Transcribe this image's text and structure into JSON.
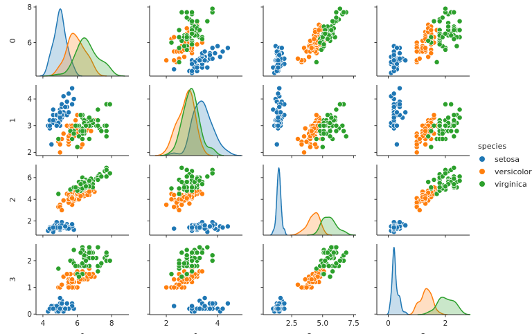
{
  "chart_data": {
    "type": "scatter-matrix",
    "diagonal": "kde",
    "hue_title": "species",
    "axes": [
      {
        "label": "0",
        "xlim": [
          3.6,
          9.0
        ],
        "ylim": [
          4.12,
          8.08
        ],
        "xticks": [
          4,
          6,
          8
        ],
        "xtick_labels": [
          "4",
          "6",
          "8"
        ],
        "yticks": [
          6,
          8
        ],
        "ytick_labels": [
          "6",
          "8"
        ]
      },
      {
        "label": "1",
        "xlim": [
          1.35,
          4.97
        ],
        "ylim": [
          1.88,
          4.52
        ],
        "xticks": [
          2,
          4
        ],
        "xtick_labels": [
          "2",
          "4"
        ],
        "yticks": [
          2,
          3,
          4
        ],
        "ytick_labels": [
          "2",
          "3",
          "4"
        ]
      },
      {
        "label": "2",
        "xlim": [
          0.2,
          7.7
        ],
        "ylim": [
          0.7,
          7.2
        ],
        "xticks": [
          2.5,
          5.0,
          7.5
        ],
        "xtick_labels": [
          "2.5",
          "5.0",
          "7.5"
        ],
        "yticks": [
          2,
          4,
          6
        ],
        "ytick_labels": [
          "2",
          "4",
          "6"
        ]
      },
      {
        "label": "3",
        "xlim": [
          -0.4,
          2.85
        ],
        "ylim": [
          -0.02,
          2.62
        ],
        "xticks": [
          0,
          2
        ],
        "xtick_labels": [
          "0",
          "2"
        ],
        "yticks": [
          0,
          1,
          2
        ],
        "ytick_labels": [
          "0",
          "1",
          "2"
        ]
      }
    ],
    "species": [
      {
        "name": "setosa",
        "color": "#1f77b4",
        "rows": [
          [
            5.1,
            3.5,
            1.4,
            0.2
          ],
          [
            4.9,
            3.0,
            1.4,
            0.2
          ],
          [
            4.7,
            3.2,
            1.3,
            0.2
          ],
          [
            4.6,
            3.1,
            1.5,
            0.2
          ],
          [
            5.0,
            3.6,
            1.4,
            0.2
          ],
          [
            5.4,
            3.9,
            1.7,
            0.4
          ],
          [
            4.6,
            3.4,
            1.4,
            0.3
          ],
          [
            5.0,
            3.4,
            1.5,
            0.2
          ],
          [
            4.4,
            2.9,
            1.4,
            0.2
          ],
          [
            4.9,
            3.1,
            1.5,
            0.1
          ],
          [
            5.4,
            3.7,
            1.5,
            0.2
          ],
          [
            4.8,
            3.4,
            1.6,
            0.2
          ],
          [
            4.8,
            3.0,
            1.4,
            0.1
          ],
          [
            4.3,
            3.0,
            1.1,
            0.1
          ],
          [
            5.8,
            4.0,
            1.2,
            0.2
          ],
          [
            5.7,
            4.4,
            1.5,
            0.4
          ],
          [
            5.4,
            3.9,
            1.3,
            0.4
          ],
          [
            5.1,
            3.5,
            1.4,
            0.3
          ],
          [
            5.7,
            3.8,
            1.7,
            0.3
          ],
          [
            5.1,
            3.8,
            1.5,
            0.3
          ],
          [
            5.4,
            3.4,
            1.7,
            0.2
          ],
          [
            5.1,
            3.7,
            1.5,
            0.4
          ],
          [
            4.6,
            3.6,
            1.0,
            0.2
          ],
          [
            5.1,
            3.3,
            1.7,
            0.5
          ],
          [
            4.8,
            3.4,
            1.9,
            0.2
          ],
          [
            5.0,
            3.0,
            1.6,
            0.2
          ],
          [
            5.0,
            3.4,
            1.6,
            0.4
          ],
          [
            5.2,
            3.5,
            1.5,
            0.2
          ],
          [
            5.2,
            3.4,
            1.4,
            0.2
          ],
          [
            4.7,
            3.2,
            1.6,
            0.2
          ],
          [
            4.8,
            3.1,
            1.6,
            0.2
          ],
          [
            5.4,
            3.4,
            1.5,
            0.4
          ],
          [
            5.2,
            4.1,
            1.5,
            0.1
          ],
          [
            5.5,
            4.2,
            1.4,
            0.2
          ],
          [
            4.9,
            3.1,
            1.5,
            0.1
          ],
          [
            5.0,
            3.2,
            1.2,
            0.2
          ],
          [
            5.5,
            3.5,
            1.3,
            0.2
          ],
          [
            4.9,
            3.1,
            1.5,
            0.1
          ],
          [
            4.4,
            3.0,
            1.3,
            0.2
          ],
          [
            5.1,
            3.4,
            1.5,
            0.2
          ],
          [
            5.0,
            3.5,
            1.3,
            0.3
          ],
          [
            4.5,
            2.3,
            1.3,
            0.3
          ],
          [
            4.4,
            3.2,
            1.3,
            0.2
          ],
          [
            5.0,
            3.5,
            1.6,
            0.6
          ],
          [
            5.1,
            3.8,
            1.9,
            0.4
          ],
          [
            4.8,
            3.0,
            1.4,
            0.3
          ],
          [
            5.1,
            3.8,
            1.6,
            0.2
          ],
          [
            4.6,
            3.2,
            1.4,
            0.2
          ],
          [
            5.3,
            3.7,
            1.5,
            0.2
          ],
          [
            5.0,
            3.3,
            1.4,
            0.2
          ]
        ]
      },
      {
        "name": "versicolor",
        "color": "#ff7f0e",
        "rows": [
          [
            7.0,
            3.2,
            4.7,
            1.4
          ],
          [
            6.4,
            3.2,
            4.5,
            1.5
          ],
          [
            6.9,
            3.1,
            4.9,
            1.5
          ],
          [
            5.5,
            2.3,
            4.0,
            1.3
          ],
          [
            6.5,
            2.8,
            4.6,
            1.5
          ],
          [
            5.7,
            2.8,
            4.5,
            1.3
          ],
          [
            6.3,
            3.3,
            4.7,
            1.6
          ],
          [
            4.9,
            2.4,
            3.3,
            1.0
          ],
          [
            6.6,
            2.9,
            4.6,
            1.3
          ],
          [
            5.2,
            2.7,
            3.9,
            1.4
          ],
          [
            5.0,
            2.0,
            3.5,
            1.0
          ],
          [
            5.9,
            3.0,
            4.2,
            1.5
          ],
          [
            6.0,
            2.2,
            4.0,
            1.0
          ],
          [
            6.1,
            2.9,
            4.7,
            1.4
          ],
          [
            5.6,
            2.9,
            3.6,
            1.3
          ],
          [
            6.7,
            3.1,
            4.4,
            1.4
          ],
          [
            5.6,
            3.0,
            4.5,
            1.5
          ],
          [
            5.8,
            2.7,
            4.1,
            1.0
          ],
          [
            6.2,
            2.2,
            4.5,
            1.5
          ],
          [
            5.6,
            2.5,
            3.9,
            1.1
          ],
          [
            5.9,
            3.2,
            4.8,
            1.8
          ],
          [
            6.1,
            2.8,
            4.0,
            1.3
          ],
          [
            6.3,
            2.5,
            4.9,
            1.5
          ],
          [
            6.1,
            2.8,
            4.7,
            1.2
          ],
          [
            6.4,
            2.9,
            4.3,
            1.3
          ],
          [
            6.6,
            3.0,
            4.4,
            1.4
          ],
          [
            6.8,
            2.8,
            4.8,
            1.4
          ],
          [
            6.7,
            3.0,
            5.0,
            1.7
          ],
          [
            6.0,
            2.9,
            4.5,
            1.5
          ],
          [
            5.7,
            2.6,
            3.5,
            1.0
          ],
          [
            5.5,
            2.4,
            3.8,
            1.1
          ],
          [
            5.5,
            2.4,
            3.7,
            1.0
          ],
          [
            5.8,
            2.7,
            3.9,
            1.2
          ],
          [
            6.0,
            2.7,
            5.1,
            1.6
          ],
          [
            5.4,
            3.0,
            4.5,
            1.5
          ],
          [
            6.0,
            3.4,
            4.5,
            1.6
          ],
          [
            6.7,
            3.1,
            4.7,
            1.5
          ],
          [
            6.3,
            2.3,
            4.4,
            1.3
          ],
          [
            5.6,
            3.0,
            4.1,
            1.3
          ],
          [
            5.5,
            2.5,
            4.0,
            1.3
          ],
          [
            5.5,
            2.6,
            4.4,
            1.2
          ],
          [
            6.1,
            3.0,
            4.6,
            1.4
          ],
          [
            5.8,
            2.6,
            4.0,
            1.2
          ],
          [
            5.0,
            2.3,
            3.3,
            1.0
          ],
          [
            5.6,
            2.7,
            4.2,
            1.3
          ],
          [
            5.7,
            3.0,
            4.2,
            1.2
          ],
          [
            5.7,
            2.9,
            4.2,
            1.3
          ],
          [
            6.2,
            2.9,
            4.3,
            1.3
          ],
          [
            5.1,
            2.5,
            3.0,
            1.1
          ],
          [
            5.7,
            2.8,
            4.1,
            1.3
          ]
        ]
      },
      {
        "name": "virginica",
        "color": "#2ca02c",
        "rows": [
          [
            6.3,
            3.3,
            6.0,
            2.5
          ],
          [
            5.8,
            2.7,
            5.1,
            1.9
          ],
          [
            7.1,
            3.0,
            5.9,
            2.1
          ],
          [
            6.3,
            2.9,
            5.6,
            1.8
          ],
          [
            6.5,
            3.0,
            5.8,
            2.2
          ],
          [
            7.6,
            3.0,
            6.6,
            2.1
          ],
          [
            4.9,
            2.5,
            4.5,
            1.7
          ],
          [
            7.3,
            2.9,
            6.3,
            1.8
          ],
          [
            6.7,
            2.5,
            5.8,
            1.8
          ],
          [
            7.2,
            3.6,
            6.1,
            2.5
          ],
          [
            6.5,
            3.2,
            5.1,
            2.0
          ],
          [
            6.4,
            2.7,
            5.3,
            1.9
          ],
          [
            6.8,
            3.0,
            5.5,
            2.1
          ],
          [
            5.7,
            2.5,
            5.0,
            2.0
          ],
          [
            5.8,
            2.8,
            5.1,
            2.4
          ],
          [
            6.4,
            3.2,
            5.3,
            2.3
          ],
          [
            6.5,
            3.0,
            5.5,
            1.8
          ],
          [
            7.7,
            3.8,
            6.7,
            2.2
          ],
          [
            7.7,
            2.6,
            6.9,
            2.3
          ],
          [
            6.0,
            2.2,
            5.0,
            1.5
          ],
          [
            6.9,
            3.2,
            5.7,
            2.3
          ],
          [
            5.6,
            2.8,
            4.9,
            2.0
          ],
          [
            7.7,
            2.8,
            6.7,
            2.0
          ],
          [
            6.3,
            2.7,
            4.9,
            1.8
          ],
          [
            6.7,
            3.3,
            5.7,
            2.1
          ],
          [
            7.2,
            3.2,
            6.0,
            1.8
          ],
          [
            6.2,
            2.8,
            4.8,
            1.8
          ],
          [
            6.1,
            3.0,
            4.9,
            1.8
          ],
          [
            6.4,
            2.8,
            5.6,
            2.1
          ],
          [
            7.2,
            3.0,
            5.8,
            1.6
          ],
          [
            7.4,
            2.8,
            6.1,
            1.9
          ],
          [
            7.9,
            3.8,
            6.4,
            2.0
          ],
          [
            6.4,
            2.8,
            5.6,
            2.2
          ],
          [
            6.3,
            2.8,
            5.1,
            1.5
          ],
          [
            6.1,
            2.6,
            5.6,
            1.4
          ],
          [
            7.7,
            3.0,
            6.1,
            2.3
          ],
          [
            6.3,
            3.4,
            5.6,
            2.4
          ],
          [
            6.4,
            3.1,
            5.5,
            1.8
          ],
          [
            6.0,
            3.0,
            4.8,
            1.8
          ],
          [
            6.9,
            3.1,
            5.4,
            2.1
          ],
          [
            6.7,
            3.1,
            5.6,
            2.4
          ],
          [
            6.9,
            3.1,
            5.1,
            2.3
          ],
          [
            5.8,
            2.7,
            5.1,
            1.9
          ],
          [
            6.8,
            3.2,
            5.9,
            2.3
          ],
          [
            6.7,
            3.3,
            5.7,
            2.5
          ],
          [
            6.7,
            3.0,
            5.2,
            2.3
          ],
          [
            6.3,
            2.5,
            5.0,
            1.9
          ],
          [
            6.5,
            3.0,
            5.2,
            2.0
          ],
          [
            6.2,
            3.4,
            5.4,
            2.3
          ],
          [
            5.9,
            3.0,
            5.1,
            1.8
          ]
        ]
      }
    ]
  },
  "legend": {
    "title": "species",
    "items": [
      {
        "label": "setosa",
        "color": "#1f77b4"
      },
      {
        "label": "versicolor",
        "color": "#ff7f0e"
      },
      {
        "label": "virginica",
        "color": "#2ca02c"
      }
    ]
  }
}
